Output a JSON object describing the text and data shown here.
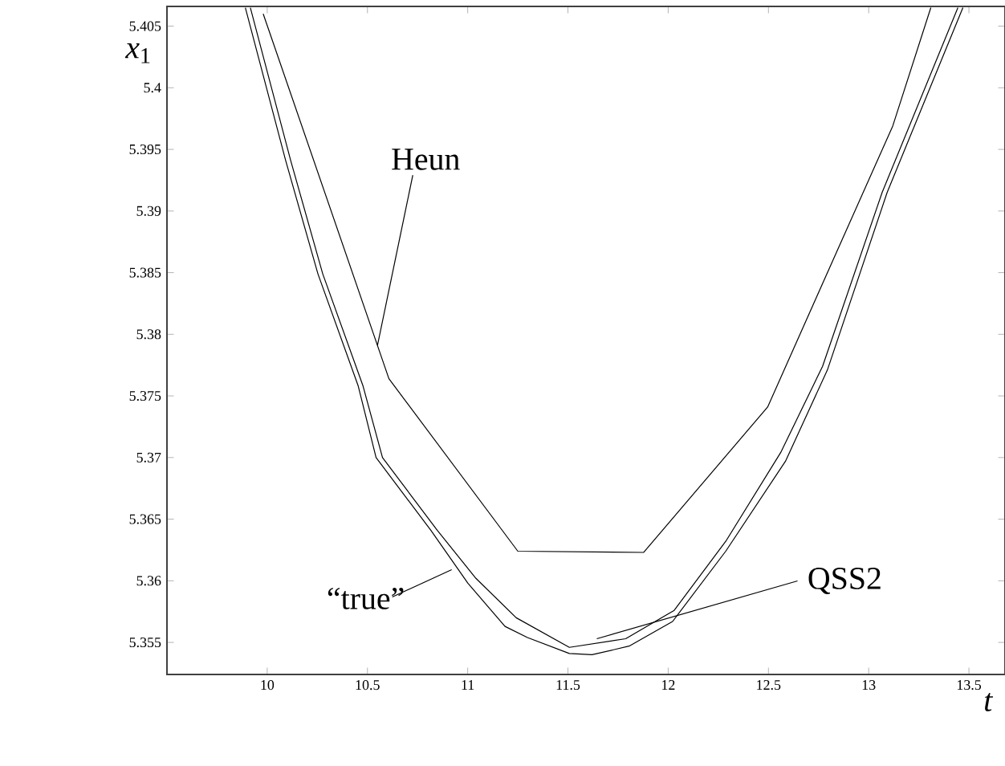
{
  "chart_data": {
    "type": "line",
    "xlabel": "*t*",
    "ylabel": "*x*$_{1}$",
    "xlim": [
      9.5,
      13.68
    ],
    "ylim": [
      5.3524,
      5.4066
    ],
    "xticks": [
      10,
      10.5,
      11,
      11.5,
      12,
      12.5,
      13,
      13.5
    ],
    "yticks": [
      5.355,
      5.36,
      5.365,
      5.37,
      5.375,
      5.38,
      5.385,
      5.39,
      5.395,
      5.4,
      5.405
    ],
    "grid": false,
    "marker": "none",
    "line_style": "solid",
    "series": [
      {
        "color": "#000000",
        "x": [
          9.98,
          10.607,
          11.25,
          11.877,
          12.496,
          13.12,
          13.31
        ],
        "values": [
          5.406,
          5.3764,
          5.3624,
          5.3623,
          5.3741,
          5.3969,
          5.4065
        ]
      },
      {
        "color": "#000000",
        "x": [
          9.891,
          10.092,
          10.253,
          10.454,
          10.543,
          10.816,
          11.001,
          11.186,
          11.298,
          11.507,
          11.62,
          11.805,
          12.022,
          12.287,
          12.585,
          12.794,
          13.092,
          13.47
        ],
        "values": [
          5.4065,
          5.3941,
          5.3849,
          5.3758,
          5.37,
          5.3641,
          5.3598,
          5.3563,
          5.3554,
          5.3541,
          5.354,
          5.3547,
          5.3567,
          5.3624,
          5.3697,
          5.3771,
          5.3915,
          5.4065
        ]
      },
      {
        "color": "#000000",
        "x": [
          9.916,
          10.117,
          10.277,
          10.478,
          10.575,
          10.848,
          11.041,
          11.242,
          11.507,
          11.788,
          12.03,
          12.287,
          12.561,
          12.77,
          13.067,
          13.445
        ],
        "values": [
          5.4065,
          5.3941,
          5.3849,
          5.3758,
          5.37,
          5.3641,
          5.3602,
          5.357,
          5.3546,
          5.3553,
          5.3576,
          5.3632,
          5.3704,
          5.3774,
          5.3915,
          5.4065
        ]
      }
    ],
    "annotations": [
      {
        "text": "Heun",
        "x": 10.55,
        "y": 5.3791
      },
      {
        "text": "“true”",
        "x": 10.92,
        "y": 5.3609
      },
      {
        "text": "QSS2",
        "x": 11.644,
        "y": 5.3553
      }
    ]
  }
}
